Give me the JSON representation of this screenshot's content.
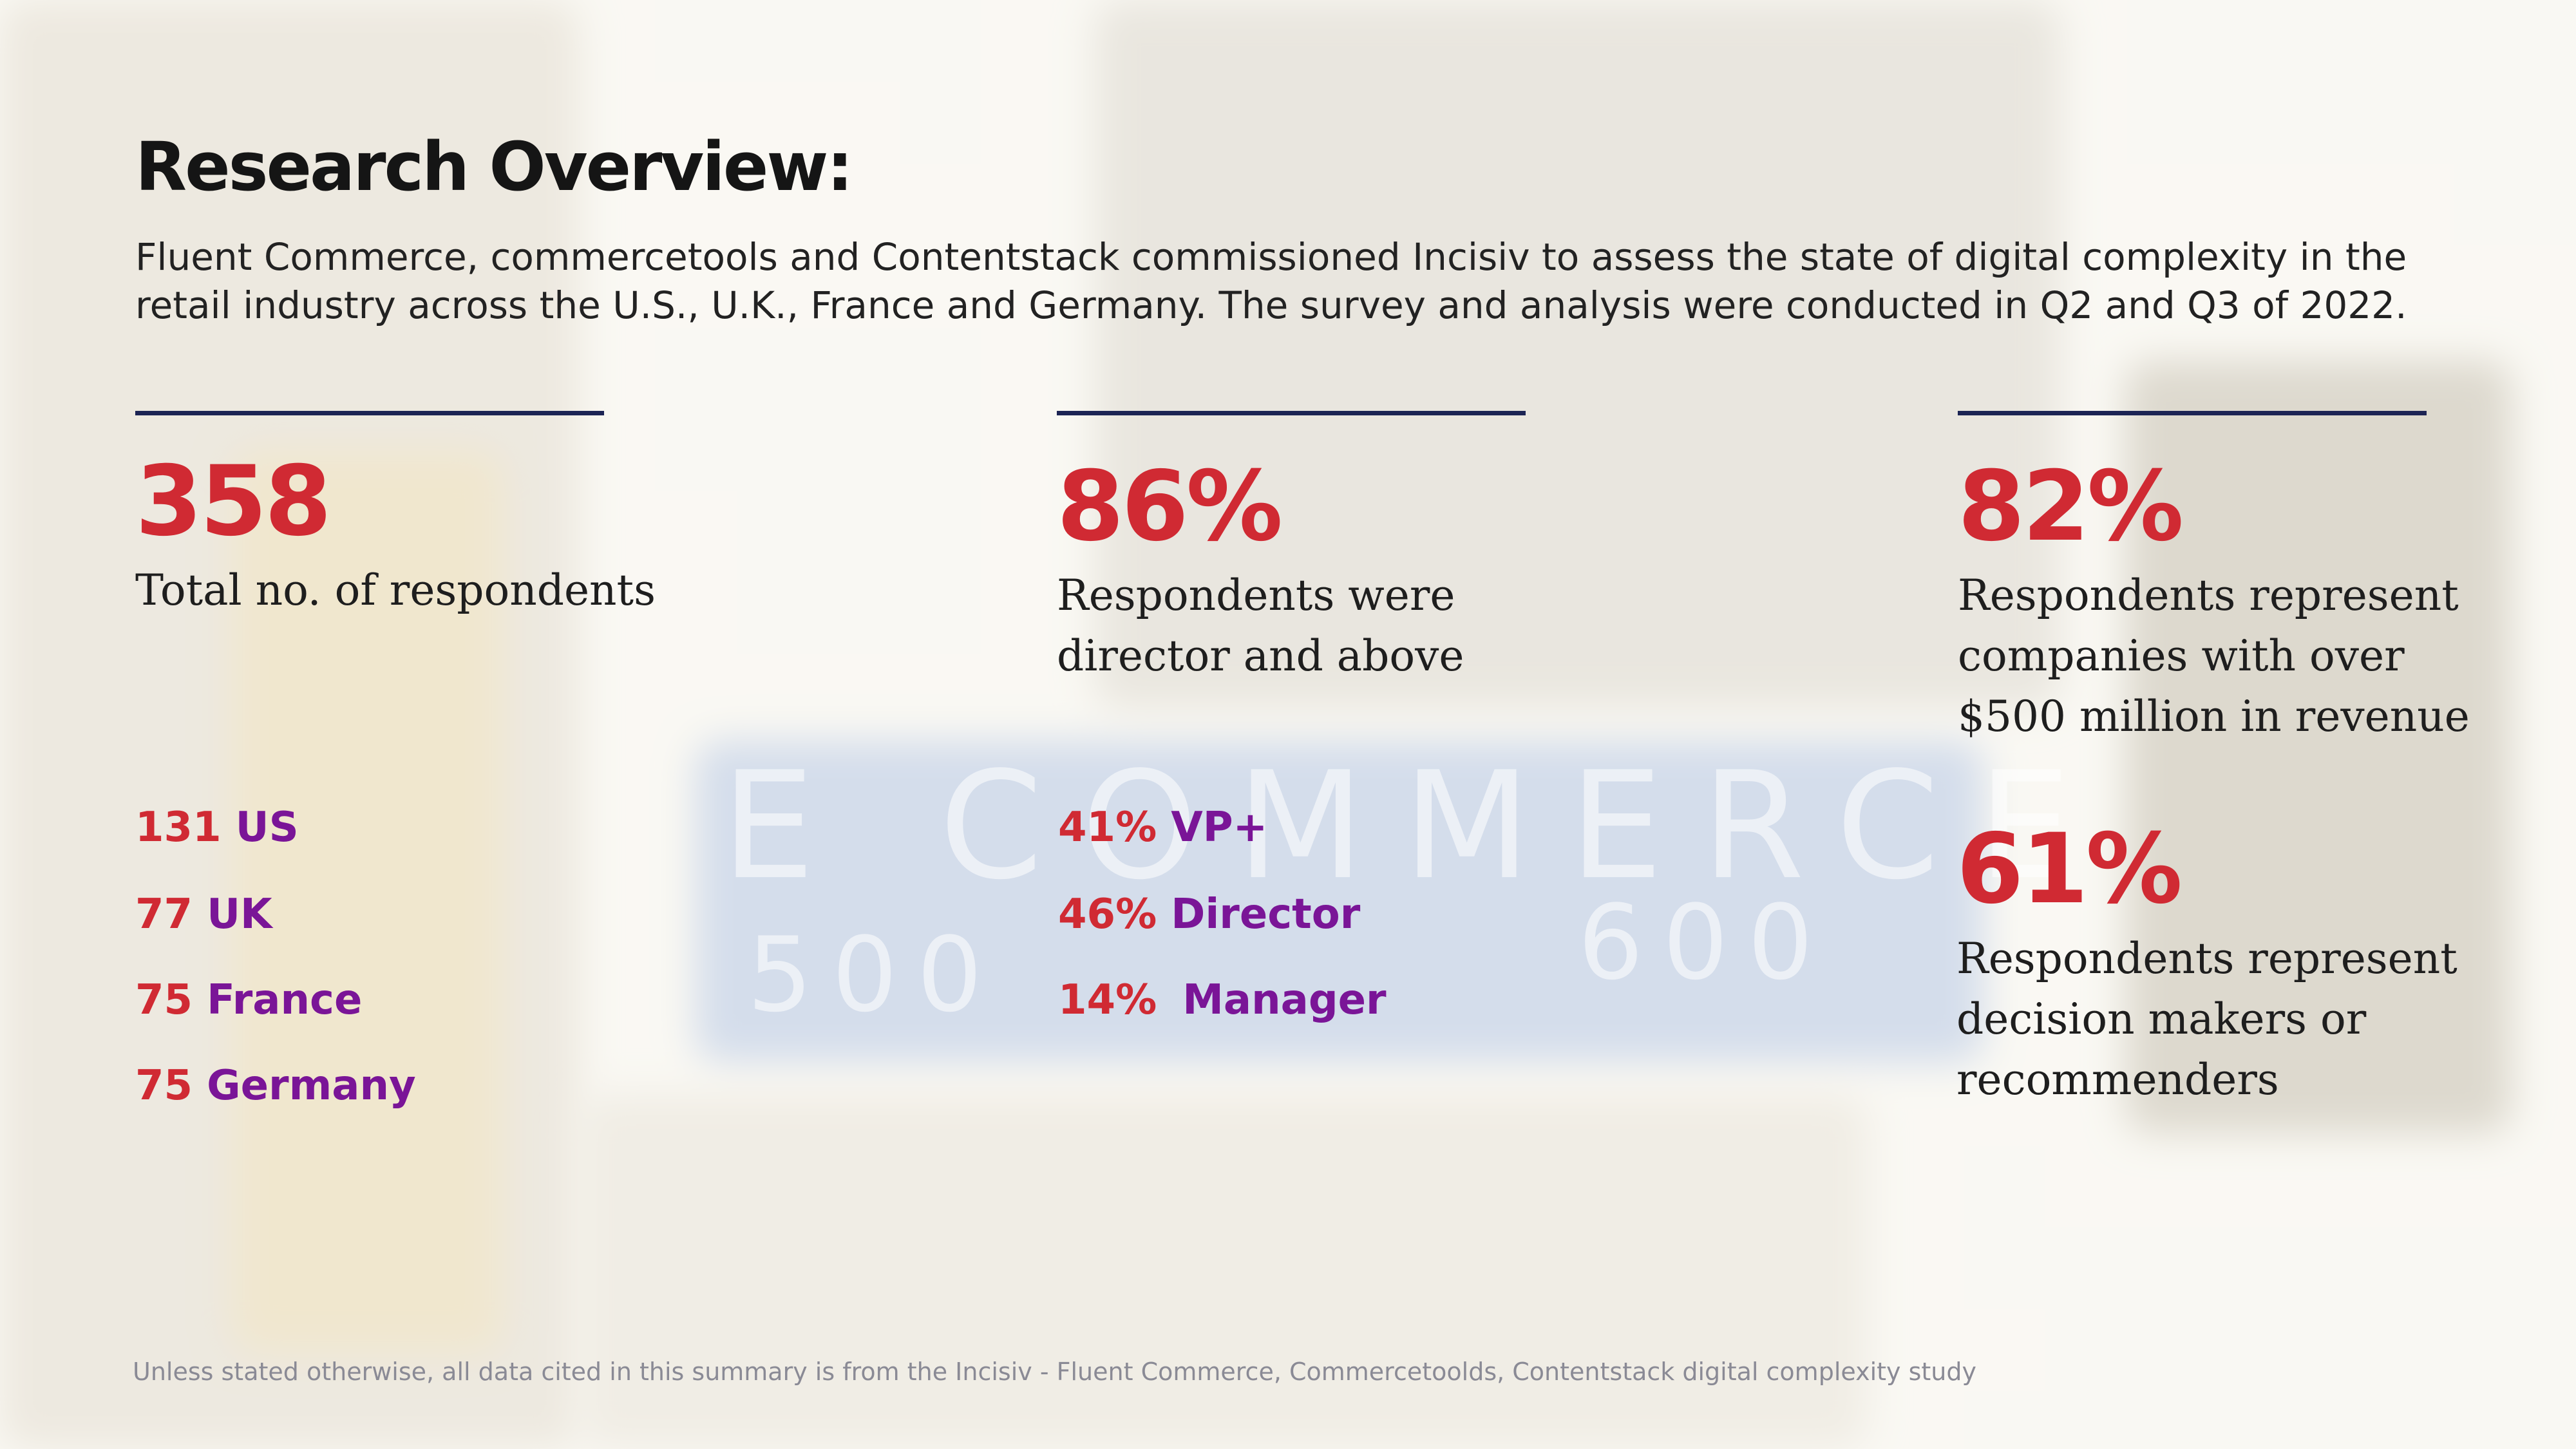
{
  "title": "Research Overview:",
  "intro": "Fluent Commerce, commercetools and Contentstack commissioned Incisiv to assess the state of digital complexity in the retail industry across the U.S., U.K., France and Germany. The survey and analysis were conducted in Q2 and Q3 of 2022.",
  "stats": [
    {
      "value": "358",
      "description": "Total no. of respondents",
      "breakdown": [
        {
          "num": "131",
          "label": "US"
        },
        {
          "num": "77",
          "label": "UK"
        },
        {
          "num": "75",
          "label": "France"
        },
        {
          "num": "75",
          "label": "Germany"
        }
      ]
    },
    {
      "value": "86%",
      "description": "Respondents were\ndirector and above",
      "breakdown": [
        {
          "num": "41%",
          "label": "VP+"
        },
        {
          "num": "46%",
          "label": "Director"
        },
        {
          "num": "14%",
          "label": "Manager"
        }
      ]
    },
    {
      "value": "82%",
      "description": "Respondents represent\ncompanies with over\n$500 million in revenue"
    },
    {
      "value": "61%",
      "description": "Respondents represent\ndecision makers or\nrecommenders"
    }
  ],
  "background_sign": {
    "line1": "E COMMERCE",
    "left_number": "500",
    "right_number": "600"
  },
  "footnote": "Unless stated otherwise, all data cited in this summary is from the Incisiv - Fluent Commerce, Commercetoolds, Contentstack digital complexity study",
  "colors": {
    "accent_red": "#d02a33",
    "accent_purple": "#7a1597",
    "rule_navy": "#1c2454"
  }
}
